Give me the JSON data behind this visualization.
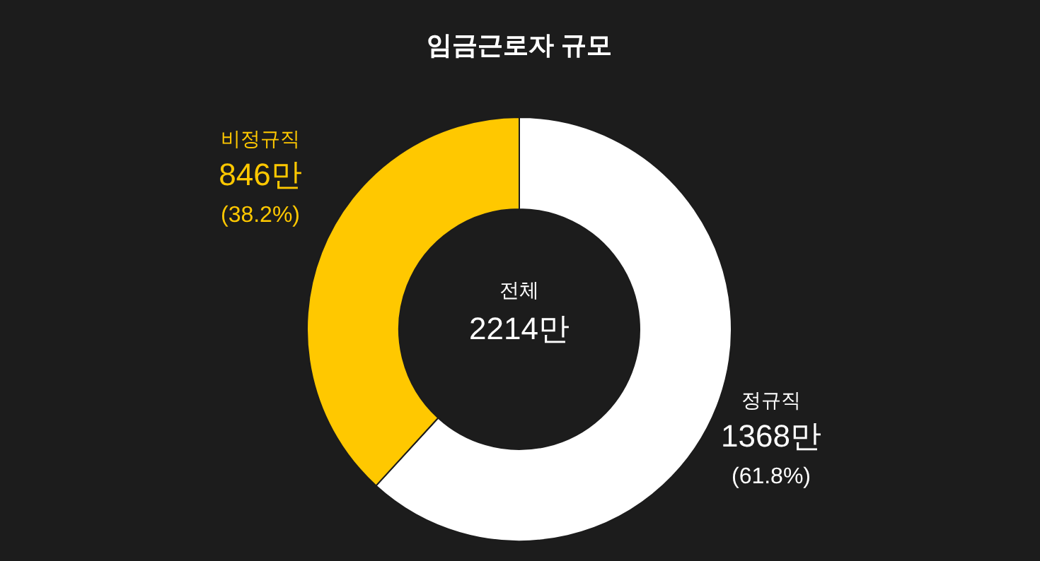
{
  "chart_data": {
    "type": "donut",
    "title": "임금근로자 규모",
    "categories": [
      "정규직",
      "비정규직"
    ],
    "values": [
      1368,
      846
    ],
    "colors": [
      "#ffffff",
      "#ffc800"
    ],
    "value_labels": [
      "1368만\n(61.8%)",
      "846만\n(38.2%)"
    ],
    "annotations": [
      "전체",
      "2214만"
    ]
  }
}
